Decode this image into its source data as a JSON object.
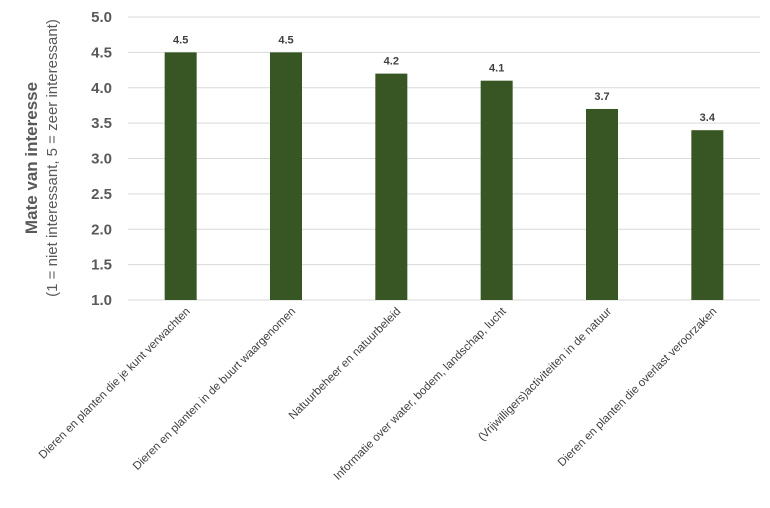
{
  "chart_data": {
    "type": "bar",
    "categories": [
      "Dieren en planten die je kunt verwachten",
      "Dieren en planten in de buurt waargenomen",
      "Natuurbeheer en natuurbeleid",
      "Informatie over water, bodem, landschap, lucht",
      "(Vrijwilligers)activiteiten in de natuur",
      "Dieren en planten die overlast veroorzaken"
    ],
    "values": [
      4.5,
      4.5,
      4.2,
      4.1,
      3.7,
      3.4
    ],
    "data_labels": [
      "4.5",
      "4.5",
      "4.2",
      "4.1",
      "3.7",
      "3.4"
    ],
    "ylabel": "Mate van interesse",
    "ylabel_sub": "(1 = niet interessant, 5 = zeer interessant)",
    "ylim": [
      1.0,
      5.0
    ],
    "yticks": [
      "1.0",
      "1.5",
      "2.0",
      "2.5",
      "3.0",
      "3.5",
      "4.0",
      "4.5",
      "5.0"
    ],
    "grid": true,
    "bar_color": "#375623"
  }
}
